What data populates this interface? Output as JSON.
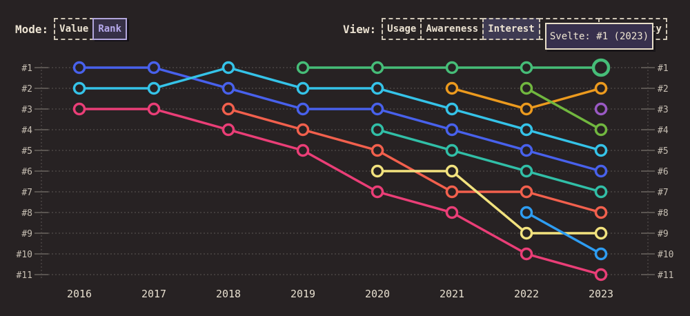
{
  "header": {
    "mode_label": "Mode:",
    "mode_buttons": [
      {
        "label": "Value",
        "active": false
      },
      {
        "label": "Rank",
        "active": true
      }
    ],
    "view_label": "View:",
    "view_buttons": [
      {
        "label": "Usage",
        "active": false
      },
      {
        "label": "Awareness",
        "active": false
      },
      {
        "label": "Interest",
        "active": true
      },
      {
        "label": "",
        "active": false
      },
      {
        "label": "Positivity",
        "active": false
      }
    ]
  },
  "tooltip": {
    "text": "Svelte: #1 (2023)"
  },
  "colors": {
    "background": "#272223",
    "grid": "#534e4c",
    "tick": "#6a6560",
    "rank_label": "#c6beb2",
    "year_label": "#e7dfcf",
    "tooltip_border": "#e9dfc9",
    "tooltip_bg": "#37304d",
    "accent_active": "#b6a9ec"
  },
  "chart_data": {
    "type": "line",
    "subtype": "bump-rank-chart",
    "title": "",
    "x": [
      2016,
      2017,
      2018,
      2019,
      2020,
      2021,
      2022,
      2023
    ],
    "y_tick_labels": [
      "#1",
      "#2",
      "#3",
      "#4",
      "#5",
      "#6",
      "#7",
      "#8",
      "#9",
      "#10",
      "#11"
    ],
    "y_axis": "rank (1 = best, shown on both left and right sides)",
    "grid": "dotted horizontal lines, dotted vertical axis lines with solid ticks",
    "legend": "none (series identified by color; tooltip names hovered series)",
    "series": [
      {
        "name": "blue",
        "color": "#4861ec",
        "ranks": [
          1,
          1,
          2,
          3,
          3,
          4,
          5,
          6
        ]
      },
      {
        "name": "cyan",
        "color": "#35c3e8",
        "ranks": [
          2,
          2,
          1,
          2,
          2,
          3,
          4,
          5
        ]
      },
      {
        "name": "pink",
        "color": "#ea3e77",
        "ranks": [
          3,
          3,
          4,
          5,
          7,
          8,
          10,
          11
        ]
      },
      {
        "name": "salmon",
        "color": "#f2604d",
        "ranks": [
          null,
          null,
          3,
          4,
          5,
          7,
          7,
          8
        ]
      },
      {
        "name": "emerald",
        "color": "#46bd78",
        "ranks": [
          null,
          null,
          null,
          1,
          1,
          1,
          1,
          1
        ]
      },
      {
        "name": "teal",
        "color": "#31bfa7",
        "ranks": [
          null,
          null,
          null,
          null,
          4,
          5,
          6,
          7
        ]
      },
      {
        "name": "yellow",
        "color": "#f2e27e",
        "ranks": [
          null,
          null,
          null,
          null,
          6,
          6,
          9,
          9
        ]
      },
      {
        "name": "amber",
        "color": "#ec9a1e",
        "ranks": [
          null,
          null,
          null,
          null,
          null,
          2,
          3,
          2
        ]
      },
      {
        "name": "olive",
        "color": "#71b73f",
        "ranks": [
          null,
          null,
          null,
          null,
          null,
          null,
          2,
          4
        ]
      },
      {
        "name": "sky",
        "color": "#2e9df2",
        "ranks": [
          null,
          null,
          null,
          null,
          null,
          null,
          8,
          10
        ]
      },
      {
        "name": "purple",
        "color": "#9a59c4",
        "ranks": [
          null,
          null,
          null,
          null,
          null,
          null,
          null,
          3
        ]
      }
    ],
    "highlight": {
      "series": "emerald",
      "year": 2023,
      "tooltip": "Svelte: #1 (2023)"
    }
  }
}
